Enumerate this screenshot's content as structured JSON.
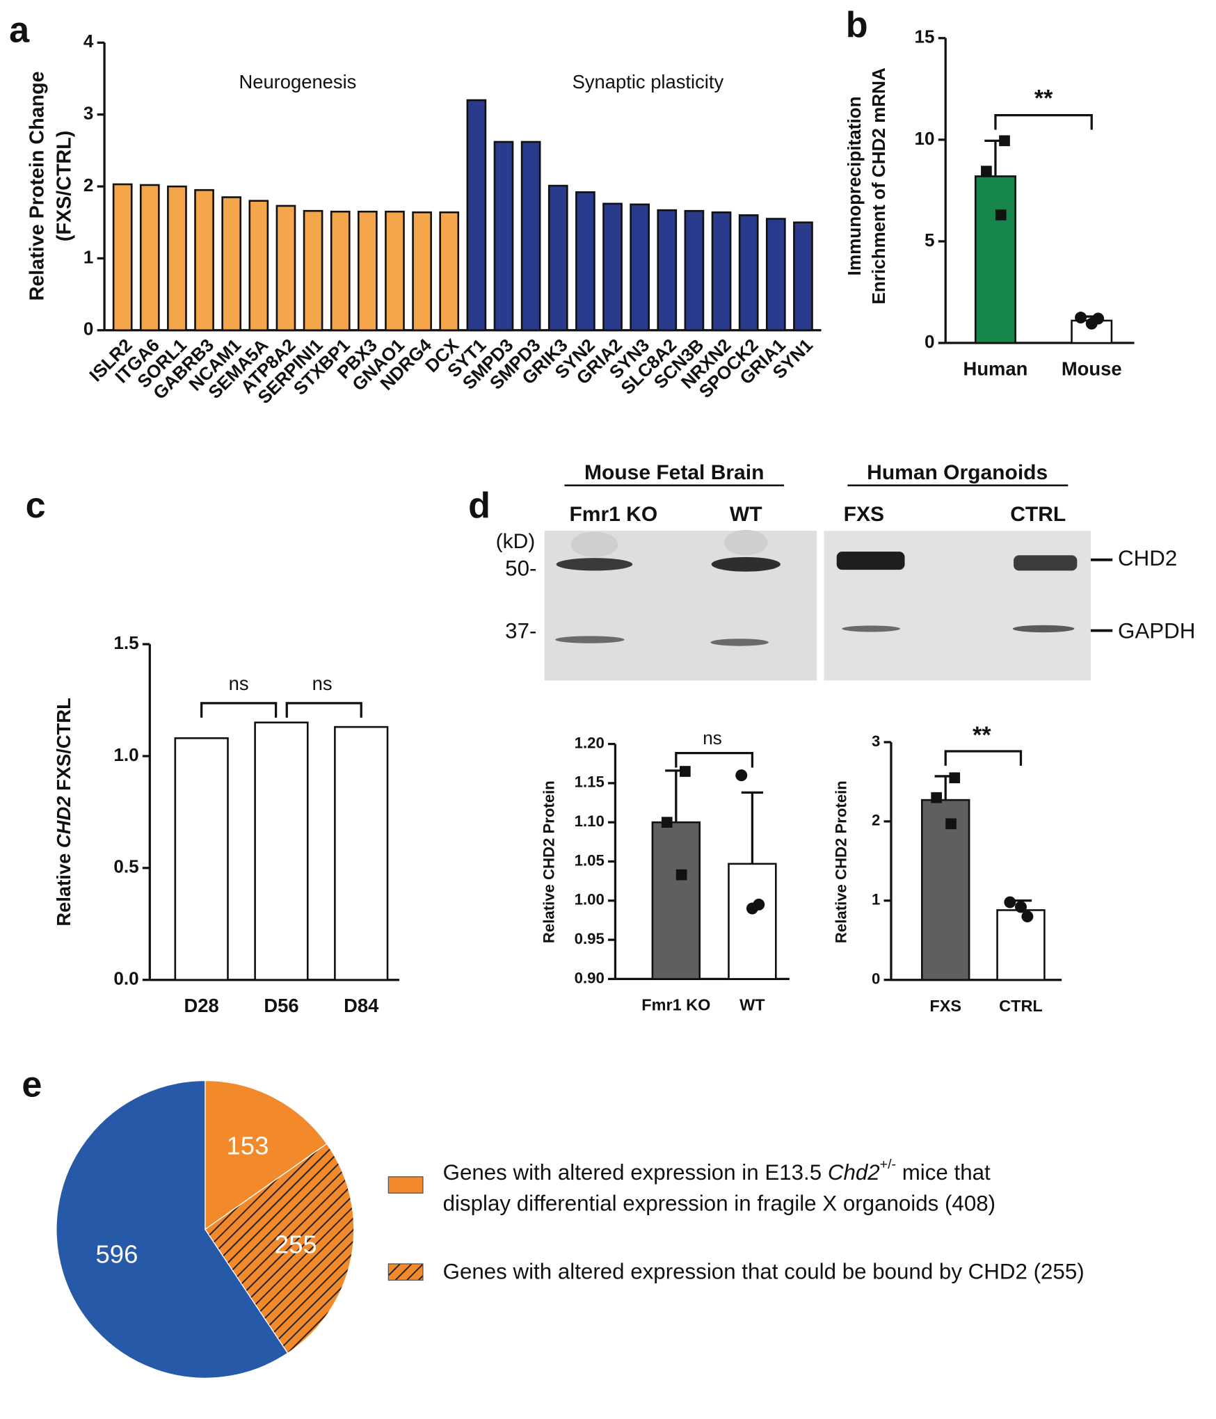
{
  "chart_data": [
    {
      "type": "bar",
      "panel": "a",
      "ylabel": [
        "Relative Protein Change",
        "(FXS/CTRL)"
      ],
      "annotations": [
        "Neurogenesis",
        "Synaptic plasticity"
      ],
      "categories": [
        "ISLR2",
        "ITGA6",
        "SORL1",
        "GABRB3",
        "NCAM1",
        "SEMA5A",
        "ATP8A2",
        "SERPINI1",
        "STXBP1",
        "PBX3",
        "GNAO1",
        "NDRG4",
        "DCX",
        "SYT1",
        "SMPD3",
        "SMPD3",
        "GRIK3",
        "SYN2",
        "GRIA2",
        "SYN3",
        "SLC8A2",
        "SCN3B",
        "NRXN2",
        "SPOCK2",
        "GRIA1",
        "SYN1"
      ],
      "values": [
        2.03,
        2.02,
        2.0,
        1.95,
        1.85,
        1.8,
        1.73,
        1.66,
        1.65,
        1.65,
        1.65,
        1.64,
        1.64,
        3.2,
        2.62,
        2.62,
        2.01,
        1.92,
        1.76,
        1.75,
        1.67,
        1.66,
        1.64,
        1.6,
        1.55,
        1.5
      ],
      "colors": [
        "#f5a54a",
        "#f5a54a",
        "#f5a54a",
        "#f5a54a",
        "#f5a54a",
        "#f5a54a",
        "#f5a54a",
        "#f5a54a",
        "#f5a54a",
        "#f5a54a",
        "#f5a54a",
        "#f5a54a",
        "#f5a54a",
        "#2a3a8c",
        "#2a3a8c",
        "#2a3a8c",
        "#2a3a8c",
        "#2a3a8c",
        "#2a3a8c",
        "#2a3a8c",
        "#2a3a8c",
        "#2a3a8c",
        "#2a3a8c",
        "#2a3a8c",
        "#2a3a8c",
        "#2a3a8c"
      ],
      "ylim": [
        0,
        4
      ],
      "yticks": [
        0,
        1,
        2,
        3,
        4
      ]
    },
    {
      "type": "bar",
      "panel": "b",
      "ylabel": [
        "Immunoprecipitation",
        "Enrichment of CHD2 mRNA"
      ],
      "annotations": [
        "**"
      ],
      "categories": [
        "Human",
        "Mouse"
      ],
      "values": [
        8.2,
        1.1
      ],
      "errors": [
        1.75,
        0.2
      ],
      "points": [
        [
          9.95,
          8.45,
          6.3
        ],
        [
          1.25,
          0.95,
          1.2
        ]
      ],
      "markers": [
        "square",
        "circle"
      ],
      "colors": [
        "#17864a",
        "#ffffff"
      ],
      "ylim": [
        0,
        15
      ],
      "yticks": [
        0,
        5,
        10,
        15
      ]
    },
    {
      "type": "bar",
      "panel": "c",
      "ylabel": [
        [
          "Relative ",
          "CHD2",
          " FXS/CTRL"
        ]
      ],
      "annotations": [
        "ns",
        "ns"
      ],
      "categories": [
        "D28",
        "D56",
        "D84"
      ],
      "values": [
        1.08,
        1.15,
        1.13
      ],
      "colors": [
        "#ffffff",
        "#ffffff",
        "#ffffff"
      ],
      "ylim": [
        0,
        1.5
      ],
      "yticks": [
        {
          "value": 0,
          "label": "0.0"
        },
        {
          "value": 0.5,
          "label": "0.5"
        },
        {
          "value": 1,
          "label": "1.0"
        },
        {
          "value": 1.5,
          "label": "1.5"
        }
      ]
    },
    {
      "type": "bar",
      "panel": "d",
      "ylabel": [
        "Relative CHD2 Protein"
      ],
      "annotations": [
        "ns"
      ],
      "categories": [
        "Fmr1 KO",
        "WT"
      ],
      "values": [
        1.1,
        1.047
      ],
      "errors": [
        0.066,
        0.091
      ],
      "points": [
        [
          1.165,
          1.1,
          1.033
        ],
        [
          1.16,
          0.99,
          0.995
        ]
      ],
      "markers": [
        "square",
        "circle"
      ],
      "colors": [
        "#5f5f5f",
        "#ffffff"
      ],
      "ylim": [
        0.9,
        1.2
      ],
      "yticks": [
        {
          "value": 0.9,
          "label": "0.90"
        },
        {
          "value": 0.95,
          "label": "0.95"
        },
        {
          "value": 1,
          "label": "1.00"
        },
        {
          "value": 1.05,
          "label": "1.05"
        },
        {
          "value": 1.1,
          "label": "1.10"
        },
        {
          "value": 1.15,
          "label": "1.15"
        },
        {
          "value": 1.2,
          "label": "1.20"
        }
      ]
    },
    {
      "type": "bar",
      "ylabel": [
        "Relative CHD2 Protein"
      ],
      "annotations": [
        "**"
      ],
      "categories": [
        "FXS",
        "CTRL"
      ],
      "values": [
        2.27,
        0.88
      ],
      "errors": [
        0.3,
        0.12
      ],
      "points": [
        [
          2.55,
          2.3,
          1.97
        ],
        [
          0.98,
          0.92,
          0.8
        ]
      ],
      "markers": [
        "square",
        "circle"
      ],
      "colors": [
        "#5f5f5f",
        "#ffffff"
      ],
      "ylim": [
        0,
        3
      ],
      "yticks": [
        0,
        1,
        2,
        3
      ]
    },
    {
      "type": "pie",
      "panel": "e",
      "values": [
        153,
        255,
        596
      ],
      "colors": [
        "#f28a2c",
        "#f28a2c",
        "#2659a8"
      ],
      "hatched": [
        false,
        true,
        false
      ],
      "legend": [
        [
          "Genes with altered expression in E13.5 ",
          "Chd2",
          "+/-",
          " mice that",
          "display differential expression in fragile X organoids (408)"
        ],
        [
          "Genes with altered expression that could be bound by CHD2 (255)"
        ]
      ]
    }
  ],
  "blot": {
    "groups": [
      "Mouse Fetal Brain",
      "Human Organoids"
    ],
    "lanes": [
      "Fmr1 KO",
      "WT",
      "FXS",
      "CTRL"
    ],
    "unit": "(kD)",
    "sizes": [
      "50-",
      "37-"
    ],
    "bands": [
      "CHD2",
      "GAPDH"
    ]
  }
}
